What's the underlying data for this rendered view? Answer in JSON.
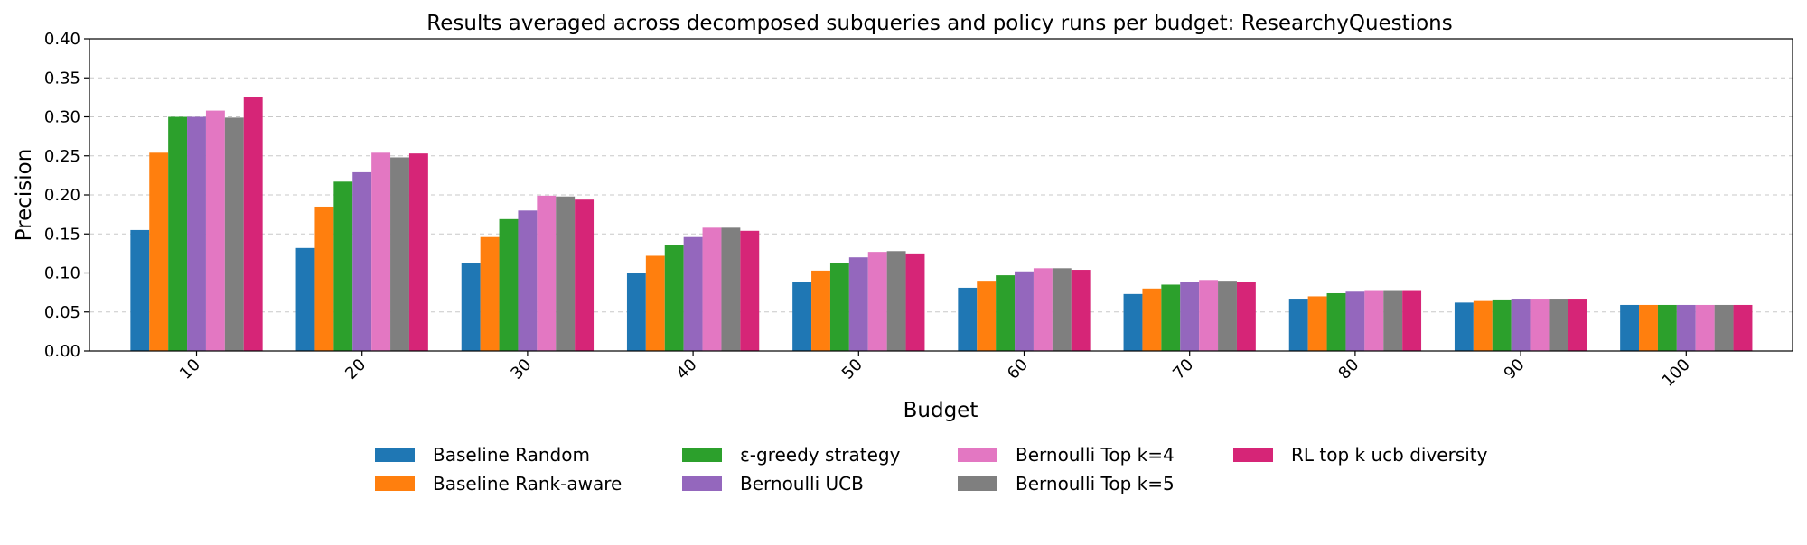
{
  "chart_data": {
    "type": "bar",
    "title": "Results averaged across decomposed subqueries and policy runs per budget: ResearchyQuestions",
    "xlabel": "Budget",
    "ylabel": "Precision",
    "ylim": [
      0,
      0.4
    ],
    "yticks": [
      "0.00",
      "0.05",
      "0.10",
      "0.15",
      "0.20",
      "0.25",
      "0.30",
      "0.35",
      "0.40"
    ],
    "grid": "y-dashed",
    "legend_position": "bottom-center",
    "categories": [
      "10",
      "20",
      "30",
      "40",
      "50",
      "60",
      "70",
      "80",
      "90",
      "100"
    ],
    "series": [
      {
        "name": "Baseline Random",
        "color": "#1f77b4",
        "values": [
          0.155,
          0.132,
          0.113,
          0.1,
          0.089,
          0.081,
          0.073,
          0.067,
          0.062,
          0.059
        ]
      },
      {
        "name": "Baseline Rank-aware",
        "color": "#ff7f0e",
        "values": [
          0.254,
          0.185,
          0.146,
          0.122,
          0.103,
          0.09,
          0.08,
          0.07,
          0.064,
          0.059
        ]
      },
      {
        "name": "ε-greedy strategy",
        "color": "#2ca02c",
        "values": [
          0.3,
          0.217,
          0.169,
          0.136,
          0.113,
          0.097,
          0.085,
          0.074,
          0.066,
          0.059
        ]
      },
      {
        "name": "Bernoulli UCB",
        "color": "#9467bd",
        "values": [
          0.3,
          0.229,
          0.18,
          0.146,
          0.12,
          0.102,
          0.088,
          0.076,
          0.067,
          0.059
        ]
      },
      {
        "name": "Bernoulli Top k=4",
        "color": "#e377c2",
        "values": [
          0.308,
          0.254,
          0.199,
          0.158,
          0.127,
          0.106,
          0.091,
          0.078,
          0.067,
          0.059
        ]
      },
      {
        "name": "Bernoulli Top k=5",
        "color": "#7f7f7f",
        "values": [
          0.299,
          0.248,
          0.198,
          0.158,
          0.128,
          0.106,
          0.09,
          0.078,
          0.067,
          0.059
        ]
      },
      {
        "name": "RL top k ucb diversity",
        "color": "#d62577",
        "values": [
          0.325,
          0.253,
          0.194,
          0.154,
          0.125,
          0.104,
          0.089,
          0.078,
          0.067,
          0.059
        ]
      }
    ]
  }
}
